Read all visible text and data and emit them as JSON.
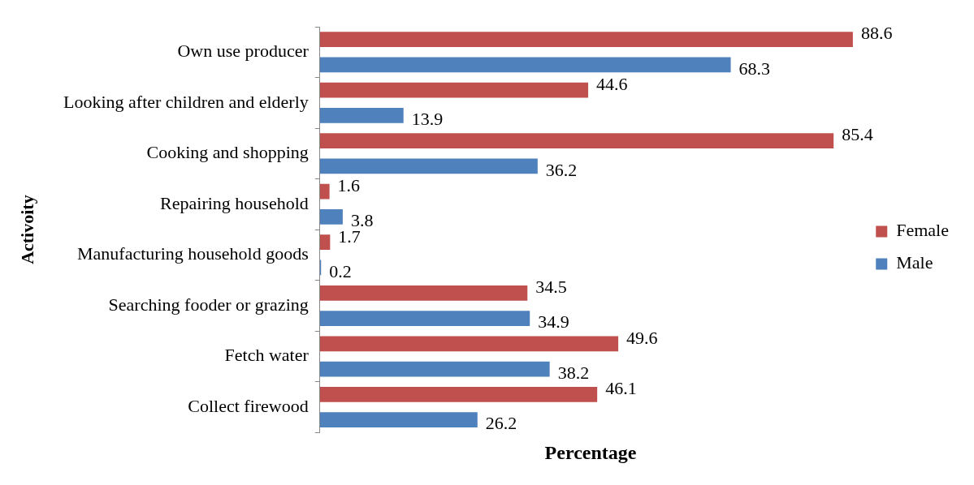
{
  "chart_data": {
    "type": "bar",
    "orientation": "horizontal",
    "xlabel": "Percentage",
    "ylabel": "Activoity",
    "categories": [
      "Own use producer",
      "Looking after children and elderly",
      "Cooking and shopping",
      "Repairing household",
      "Manufacturing household goods",
      "Searching fooder or grazing",
      "Fetch water",
      "Collect firewood"
    ],
    "series": [
      {
        "name": "Female",
        "color": "#c0504d",
        "values": [
          88.6,
          44.6,
          85.4,
          1.6,
          1.7,
          34.5,
          49.6,
          46.1
        ]
      },
      {
        "name": "Male",
        "color": "#4f81bd",
        "values": [
          68.3,
          13.9,
          36.2,
          3.8,
          0.2,
          34.9,
          38.2,
          26.2
        ]
      }
    ],
    "data_labels": true,
    "legend": "right",
    "grid": false,
    "tick_labels": "y"
  }
}
